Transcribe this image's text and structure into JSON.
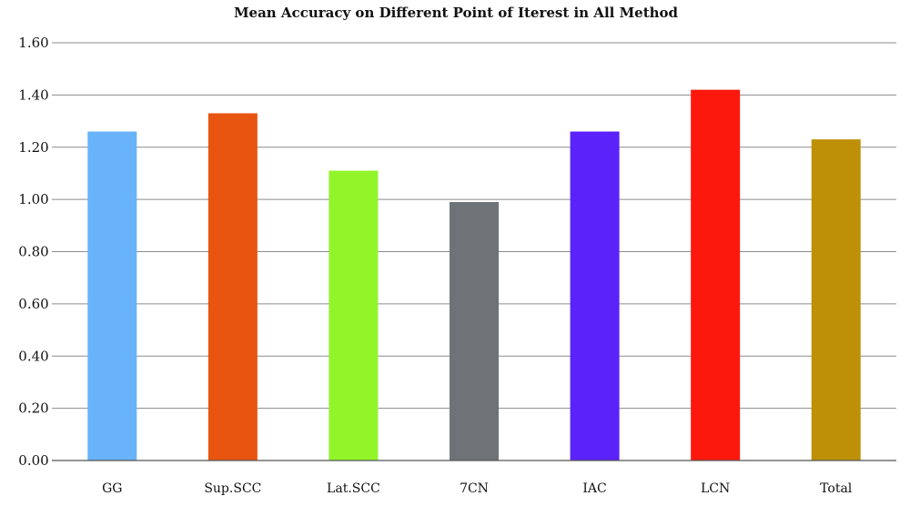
{
  "chart_data": {
    "type": "bar",
    "title": "Mean Accuracy on Different Point of Iterest in All Method",
    "xlabel": "",
    "ylabel": "",
    "categories": [
      "GG",
      "Sup.SCC",
      "Lat.SCC",
      "7CN",
      "IAC",
      "LCN",
      "Total"
    ],
    "values": [
      1.26,
      1.33,
      1.11,
      0.99,
      1.26,
      1.42,
      1.23
    ],
    "colors": [
      "#68B3FA",
      "#E85510",
      "#92F52A",
      "#6E7377",
      "#5B22F9",
      "#FD180E",
      "#BD9008"
    ],
    "ylim": [
      0,
      1.6
    ],
    "yticks": [
      "0.00",
      "0.20",
      "0.40",
      "0.60",
      "0.80",
      "1.00",
      "1.20",
      "1.40",
      "1.60"
    ],
    "grid": true,
    "legend": "none"
  }
}
